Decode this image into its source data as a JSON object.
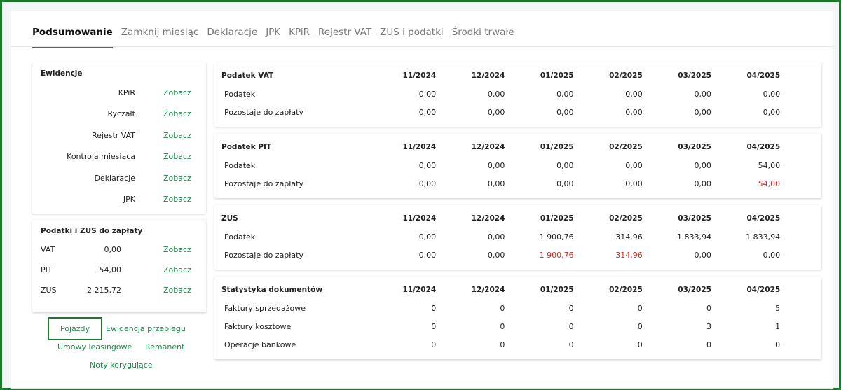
{
  "tabs": [
    "Podsumowanie",
    "Zamknij miesiąc",
    "Deklaracje",
    "JPK",
    "KPiR",
    "Rejestr VAT",
    "ZUS i podatki",
    "Środki trwałe"
  ],
  "ewidencje": {
    "title": "Ewidencje",
    "rows": [
      {
        "label": "KPiR",
        "link": "Zobacz"
      },
      {
        "label": "Ryczałt",
        "link": "Zobacz"
      },
      {
        "label": "Rejestr VAT",
        "link": "Zobacz"
      },
      {
        "label": "Kontrola miesiąca",
        "link": "Zobacz"
      },
      {
        "label": "Deklaracje",
        "link": "Zobacz"
      },
      {
        "label": "JPK",
        "link": "Zobacz"
      }
    ]
  },
  "podatki": {
    "title": "Podatki i ZUS do zapłaty",
    "rows": [
      {
        "label": "VAT",
        "amount": "0,00",
        "link": "Zobacz"
      },
      {
        "label": "PIT",
        "amount": "54,00",
        "link": "Zobacz"
      },
      {
        "label": "ZUS",
        "amount": "2 215,72",
        "link": "Zobacz"
      }
    ]
  },
  "links": [
    "Pojazdy",
    "Ewidencja przebiegu",
    "Umowy leasingowe",
    "Remanent",
    "Noty korygujące"
  ],
  "alert_color": "#e0201b",
  "tables": [
    {
      "title": "Podatek VAT",
      "columns": [
        "11/2024",
        "12/2024",
        "01/2025",
        "02/2025",
        "03/2025",
        "04/2025"
      ],
      "rows": [
        {
          "label": "Podatek",
          "cells": [
            "0,00",
            "0,00",
            "0,00",
            "0,00",
            "0,00",
            "0,00"
          ]
        },
        {
          "label": "Pozostaje do zapłaty",
          "cells": [
            "0,00",
            "0,00",
            "0,00",
            "0,00",
            "0,00",
            "0,00"
          ]
        }
      ]
    },
    {
      "title": "Podatek PIT",
      "columns": [
        "11/2024",
        "12/2024",
        "01/2025",
        "02/2025",
        "03/2025",
        "04/2025"
      ],
      "rows": [
        {
          "label": "Podatek",
          "cells": [
            "0,00",
            "0,00",
            "0,00",
            "0,00",
            "0,00",
            "54,00"
          ]
        },
        {
          "label": "Pozostaje do zapłaty",
          "cells": [
            "0,00",
            "0,00",
            "0,00",
            "0,00",
            "0,00",
            "54,00"
          ],
          "highlight": [
            5
          ]
        }
      ]
    },
    {
      "title": "ZUS",
      "columns": [
        "11/2024",
        "12/2024",
        "01/2025",
        "02/2025",
        "03/2025",
        "04/2025"
      ],
      "rows": [
        {
          "label": "Podatek",
          "cells": [
            "0,00",
            "0,00",
            "1 900,76",
            "314,96",
            "1 833,94",
            "1 833,94"
          ]
        },
        {
          "label": "Pozostaje do zapłaty",
          "cells": [
            "0,00",
            "0,00",
            "1 900,76",
            "314,96",
            "0,00",
            "0,00"
          ],
          "highlight": [
            2,
            3
          ]
        }
      ]
    },
    {
      "title": "Statystyka dokumentów",
      "columns": [
        "11/2024",
        "12/2024",
        "01/2025",
        "02/2025",
        "03/2025",
        "04/2025"
      ],
      "rows": [
        {
          "label": "Faktury sprzedażowe",
          "cells": [
            "0",
            "0",
            "0",
            "0",
            "0",
            "5"
          ]
        },
        {
          "label": "Faktury kosztowe",
          "cells": [
            "0",
            "0",
            "0",
            "0",
            "3",
            "1"
          ]
        },
        {
          "label": "Operacje bankowe",
          "cells": [
            "0",
            "0",
            "0",
            "0",
            "0",
            "0"
          ]
        }
      ]
    }
  ]
}
